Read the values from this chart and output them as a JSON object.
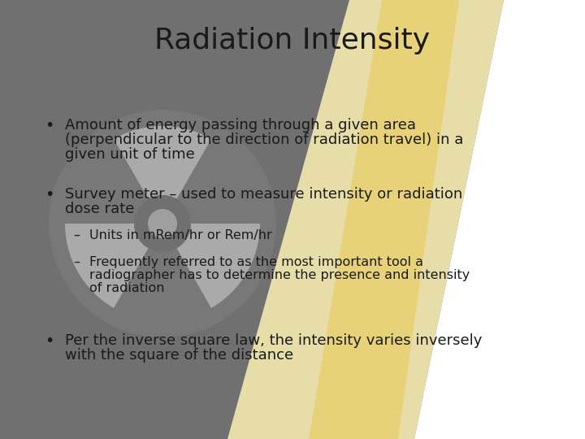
{
  "title": "Radiation Intensity",
  "title_fontsize": 26,
  "title_color": "#1a1a1a",
  "text_color": "#1a1a1a",
  "bg_dark": "#6e6e6e",
  "bg_light": "#9a9a9a",
  "diagonal_color": "#f5eab0",
  "diagonal_color2": "#e8c84a",
  "white": "#ffffff",
  "bullet1_line1": "Amount of energy passing through a given area",
  "bullet1_line2": "(perpendicular to the direction of radiation travel) in a",
  "bullet1_line3": "given unit of time",
  "bullet2_line1": "Survey meter – used to measure intensity or radiation",
  "bullet2_line2": "dose rate",
  "sub1": "Units in mRem/hr or Rem/hr",
  "sub2_line1": "Frequently referred to as the most important tool a",
  "sub2_line2": "radiographer has to determine the presence and intensity",
  "sub2_line3": "of radiation",
  "bullet3_line1": "Per the inverse square law, the intensity varies inversely",
  "bullet3_line2": "with the square of the distance",
  "body_fontsize": 13,
  "sub_fontsize": 11.5
}
